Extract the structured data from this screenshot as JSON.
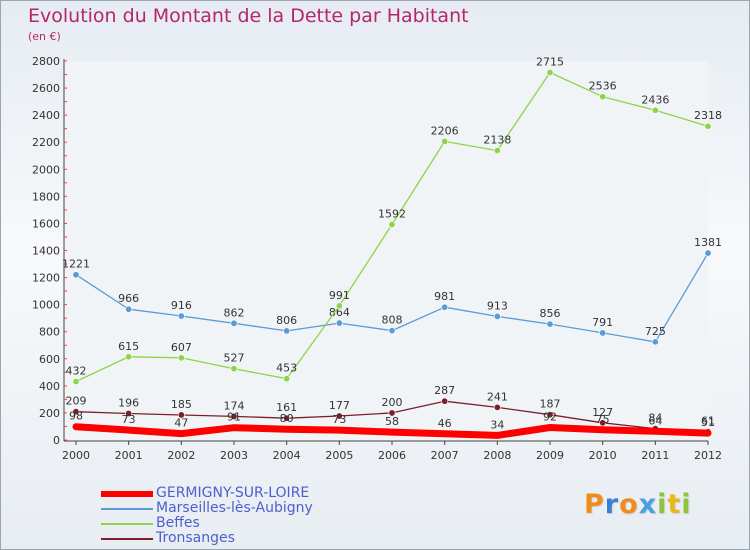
{
  "title": "Evolution du Montant de la Dette par Habitant",
  "subtitle": "(en €)",
  "logo": {
    "letters": [
      "P",
      "r",
      "o",
      "x",
      "i",
      "t",
      "i"
    ],
    "colors": [
      "#f08c1c",
      "#3a7fd5",
      "#f08c1c",
      "#4aa0e0",
      "#8cc43c",
      "#e8b81c",
      "#8cc43c"
    ]
  },
  "chart_data": {
    "type": "line",
    "x": [
      "2000",
      "2001",
      "2002",
      "2003",
      "2004",
      "2005",
      "2006",
      "2007",
      "2008",
      "2009",
      "2010",
      "2011",
      "2012"
    ],
    "ylim": [
      0,
      2800
    ],
    "yticks": [
      0,
      200,
      400,
      600,
      800,
      1000,
      1200,
      1400,
      1600,
      1800,
      2000,
      2200,
      2400,
      2600,
      2800
    ],
    "grid": false,
    "legend_position": "bottom-left",
    "series": [
      {
        "name": "Marseilles-lès-Aubigny",
        "color": "#5b9bd5",
        "line_width": 1.3,
        "values": [
          1221,
          966,
          916,
          862,
          806,
          864,
          808,
          981,
          913,
          856,
          791,
          725,
          1381
        ]
      },
      {
        "name": "Beffes",
        "color": "#8fd34a",
        "line_width": 1.3,
        "values": [
          432,
          615,
          607,
          527,
          453,
          991,
          1592,
          2206,
          2138,
          2715,
          2536,
          2436,
          2318
        ]
      },
      {
        "name": "Tronsanges",
        "color": "#7a1f2b",
        "line_width": 1.3,
        "values": [
          209,
          196,
          185,
          174,
          161,
          177,
          200,
          287,
          241,
          187,
          127,
          84,
          61
        ]
      },
      {
        "name": "GERMIGNY-SUR-LOIRE",
        "color": "#ff0000",
        "line_width": 7,
        "values": [
          98,
          73,
          47,
          91,
          80,
          73,
          58,
          46,
          34,
          92,
          75,
          64,
          51
        ]
      }
    ],
    "legend_order": [
      "GERMIGNY-SUR-LOIRE",
      "Marseilles-lès-Aubigny",
      "Beffes",
      "Tronsanges"
    ]
  }
}
